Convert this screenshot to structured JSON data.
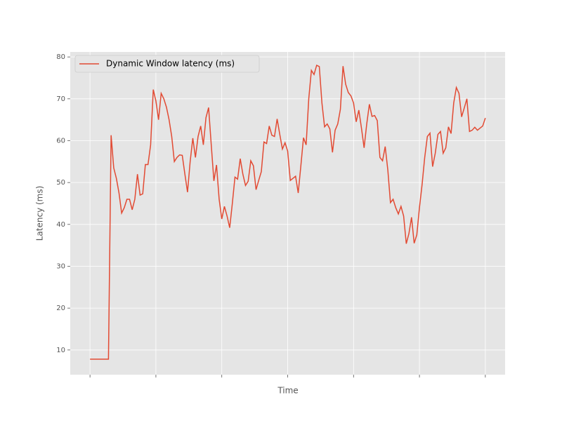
{
  "chart_data": {
    "type": "line",
    "xlabel": "Time",
    "ylabel": "Latency (ms)",
    "series": [
      {
        "name": "Dynamic Window latency (ms)",
        "color": "#e24a33",
        "values": [
          7.8,
          7.8,
          7.8,
          7.8,
          7.8,
          7.8,
          7.8,
          7.8,
          61.3,
          53.5,
          51,
          47.5,
          42.7,
          44,
          46,
          46,
          43.5,
          46,
          52,
          47,
          47.3,
          54.3,
          54.3,
          59,
          72.2,
          69.5,
          65,
          71.3,
          70,
          68,
          65,
          61,
          55,
          56,
          56.6,
          56.5,
          52,
          47.7,
          55,
          60.6,
          56,
          61,
          63.5,
          59,
          65.5,
          67.9,
          59,
          50.4,
          54.2,
          46,
          41.3,
          44.3,
          42,
          39.2,
          45,
          51.3,
          50.8,
          55.7,
          52,
          49.3,
          50.3,
          55.2,
          54,
          48.3,
          50.5,
          52.6,
          59.7,
          59.3,
          63.5,
          61.3,
          61,
          65.2,
          61.5,
          58,
          59.5,
          57.5,
          50.5,
          51,
          51.5,
          47.5,
          54,
          60.7,
          59,
          70,
          76.8,
          75.8,
          78,
          77.7,
          69,
          63.3,
          64,
          62.8,
          57.2,
          62.5,
          64,
          67.5,
          77.8,
          73.5,
          71.5,
          70.7,
          69,
          64.5,
          67.3,
          63,
          58.3,
          64,
          68.7,
          65.8,
          66,
          64.8,
          56,
          55.2,
          58.6,
          53,
          45.2,
          46,
          44,
          42.5,
          44.3,
          42,
          35.4,
          37.8,
          41.7,
          35.5,
          37.5,
          44,
          49.5,
          56,
          61,
          61.8,
          53.8,
          57,
          61.5,
          62.2,
          57,
          58.3,
          63.3,
          61.7,
          69,
          72.7,
          71.3,
          65.7,
          67.8,
          70,
          62.2,
          62.5,
          63.2,
          62.5,
          63,
          63.5,
          65.4
        ]
      }
    ],
    "xlim": [
      -7.5,
      157.5
    ],
    "xticks": [
      0,
      25,
      50,
      75,
      100,
      125,
      150
    ],
    "ylim": [
      4.1,
      81.2
    ],
    "yticks": [
      10,
      20,
      30,
      40,
      50,
      60,
      70,
      80
    ],
    "grid": true,
    "legend": "upper left"
  }
}
